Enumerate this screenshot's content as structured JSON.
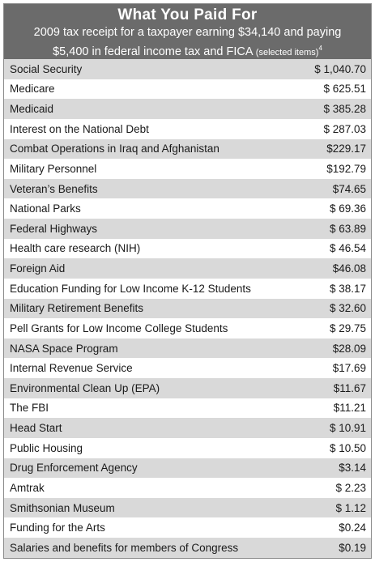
{
  "title": "What You Paid For",
  "subtitle_line1": "2009 tax receipt for a taxpayer earning $34,140 and paying",
  "subtitle_line2": "$5,400 in federal income tax and FICA",
  "subtitle_small": "(selected items)",
  "subtitle_footnote": "4",
  "items": [
    {
      "label": "Social Security",
      "amount": "$ 1,040.70"
    },
    {
      "label": "Medicare",
      "amount": "$ 625.51"
    },
    {
      "label": "Medicaid",
      "amount": "$ 385.28"
    },
    {
      "label": "Interest on the National Debt",
      "amount": "$ 287.03"
    },
    {
      "label": "Combat Operations in Iraq and Afghanistan",
      "amount": "$229.17"
    },
    {
      "label": "Military Personnel",
      "amount": "$192.79"
    },
    {
      "label": "Veteran’s Benefits",
      "amount": "$74.65"
    },
    {
      "label": "National Parks",
      "amount": "$ 69.36"
    },
    {
      "label": "Federal Highways",
      "amount": "$ 63.89"
    },
    {
      "label": "Health care research (NIH)",
      "amount": "$ 46.54"
    },
    {
      "label": "Foreign Aid",
      "amount": "$46.08"
    },
    {
      "label": "Education Funding for Low Income K-12 Students",
      "amount": "$ 38.17"
    },
    {
      "label": "Military Retirement Benefits",
      "amount": "$ 32.60"
    },
    {
      "label": "Pell Grants for Low Income College Students",
      "amount": "$ 29.75"
    },
    {
      "label": "NASA Space Program",
      "amount": "$28.09"
    },
    {
      "label": "Internal Revenue Service",
      "amount": "$17.69"
    },
    {
      "label": "Environmental Clean Up (EPA)",
      "amount": "$11.67"
    },
    {
      "label": "The FBI",
      "amount": "$11.21"
    },
    {
      "label": "Head Start",
      "amount": "$ 10.91"
    },
    {
      "label": "Public Housing",
      "amount": "$ 10.50"
    },
    {
      "label": "Drug Enforcement Agency",
      "amount": "$3.14"
    },
    {
      "label": "Amtrak",
      "amount": "$ 2.23"
    },
    {
      "label": "Smithsonian Museum",
      "amount": "$ 1.12"
    },
    {
      "label": "Funding for the Arts",
      "amount": "$0.24"
    },
    {
      "label": "Salaries and benefits for members of Congress",
      "amount": "$0.19"
    }
  ]
}
